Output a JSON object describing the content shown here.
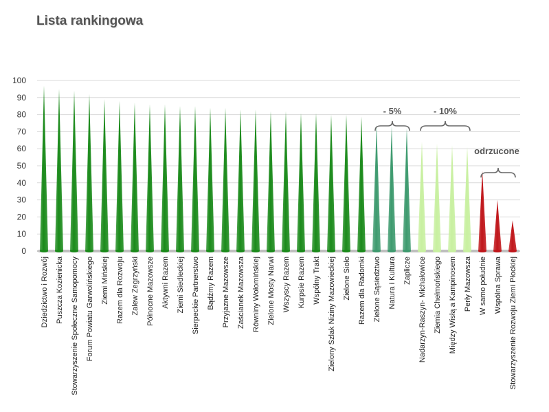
{
  "chart_data": {
    "type": "bar",
    "title": "Lista rankingowa",
    "categories": [
      "Dziedzictwo i Rozwój",
      "Puszcza Kozienicka",
      "Stowarzyszenie Społeczne Samopomocy",
      "Forum Powiatu Garwolińskiego",
      "Ziemi Mińskiej",
      "Razem dla Rozwoju",
      "Zalew Zegrzyński",
      "Północne Mazowsze",
      "Aktywni Razem",
      "Ziemi Siedleckiej",
      "Sierpeckie Partnerstwo",
      "Bądźmy Razem",
      "Przyjazne Mazowsze",
      "Zaścianek Mazowsza",
      "Równiny Wołomińskiej",
      "Zielone Mosty Narwi",
      "Wszyscy Razem",
      "Kurpsie Razem",
      "Wspólny Trakt",
      "Zielony Szlak Niziny Mazowieckiej",
      "Zielone Sioło",
      "Razem dla Radomki",
      "Zielone Sąsiedztwo",
      "Natura i Kultura",
      "Zaplicze",
      "Nadarzyn-Raszyn- Michałowice",
      "Ziemia Chełmońskiego",
      "Między Wisłą a Kampinosem",
      "Perły Mazowsza",
      "W samo południe",
      "Wspólna Sprawa",
      "Stowarzyszenie Rozwoju Ziemi Płockiej"
    ],
    "values": [
      97,
      95,
      94,
      92,
      89,
      88,
      87,
      86,
      86,
      85,
      85,
      84,
      84,
      83,
      83,
      82,
      82,
      81,
      81,
      80,
      80,
      79,
      74,
      73,
      72,
      64,
      63,
      62,
      61,
      47,
      30,
      18
    ],
    "colors": [
      "#1a8a1a",
      "#1a8a1a",
      "#1a8a1a",
      "#1a8a1a",
      "#1a8a1a",
      "#1a8a1a",
      "#1a8a1a",
      "#1a8a1a",
      "#1a8a1a",
      "#1a8a1a",
      "#1a8a1a",
      "#1a8a1a",
      "#1a8a1a",
      "#1a8a1a",
      "#1a8a1a",
      "#1a8a1a",
      "#1a8a1a",
      "#1a8a1a",
      "#1a8a1a",
      "#1a8a1a",
      "#1a8a1a",
      "#1a8a1a",
      "#3d9a6e",
      "#3d9a6e",
      "#3d9a6e",
      "#c8f0a0",
      "#c8f0a0",
      "#c8f0a0",
      "#c8f0a0",
      "#c0161a",
      "#c0161a",
      "#c0161a"
    ],
    "ylim": [
      0,
      100
    ],
    "yticks": [
      0,
      10,
      20,
      30,
      40,
      50,
      60,
      70,
      80,
      90,
      100
    ],
    "grid": true,
    "annotations": [
      {
        "text": "-   5%",
        "from": 22,
        "to": 24
      },
      {
        "text": "-   10%",
        "from": 25,
        "to": 28
      },
      {
        "text": "odrzucone",
        "from": 29,
        "to": 31
      }
    ]
  }
}
